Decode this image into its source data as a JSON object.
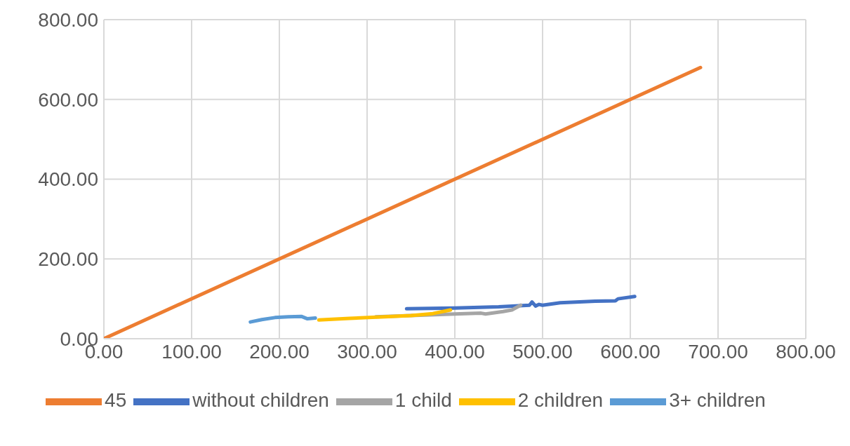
{
  "chart_data": {
    "type": "line",
    "xlim": [
      0,
      800
    ],
    "xticks": [
      {
        "value": 0,
        "label": "0.00"
      },
      {
        "value": 100,
        "label": "100.00"
      },
      {
        "value": 200,
        "label": "200.00"
      },
      {
        "value": 300,
        "label": "300.00"
      },
      {
        "value": 400,
        "label": "400.00"
      },
      {
        "value": 500,
        "label": "500.00"
      },
      {
        "value": 600,
        "label": "600.00"
      },
      {
        "value": 700,
        "label": "700.00"
      },
      {
        "value": 800,
        "label": "800.00"
      }
    ],
    "ylim": [
      0,
      800
    ],
    "yticks": [
      {
        "value": 0,
        "label": "0.00"
      },
      {
        "value": 200,
        "label": "200.00"
      },
      {
        "value": 400,
        "label": "400.00"
      },
      {
        "value": 600,
        "label": "600.00"
      },
      {
        "value": 800,
        "label": "800.00"
      }
    ],
    "grid": true,
    "legend": "bottom",
    "marker": "none",
    "series": [
      {
        "name": "45",
        "color": "#ed7d31",
        "x": [
          0,
          680
        ],
        "values": [
          0,
          680
        ]
      },
      {
        "name": "without children",
        "color": "#4472c4",
        "x": [
          345,
          400,
          450,
          485,
          488,
          492,
          496,
          500,
          520,
          560,
          583,
          586,
          605
        ],
        "values": [
          75,
          77,
          80,
          84,
          92,
          82,
          86,
          84,
          90,
          94,
          95,
          100,
          106
        ]
      },
      {
        "name": "1 child",
        "color": "#a5a5a5",
        "x": [
          310,
          400,
          430,
          435,
          455,
          465,
          475
        ],
        "values": [
          55,
          62,
          64,
          62,
          68,
          72,
          84
        ]
      },
      {
        "name": "2 children",
        "color": "#ffc000",
        "x": [
          245,
          280,
          320,
          350,
          375,
          395
        ],
        "values": [
          47,
          51,
          55,
          58,
          63,
          72
        ]
      },
      {
        "name": "3+ children",
        "color": "#5b9bd5",
        "x": [
          167,
          180,
          195,
          210,
          225,
          232,
          241
        ],
        "values": [
          42,
          48,
          53,
          55,
          56,
          50,
          52
        ]
      }
    ]
  }
}
